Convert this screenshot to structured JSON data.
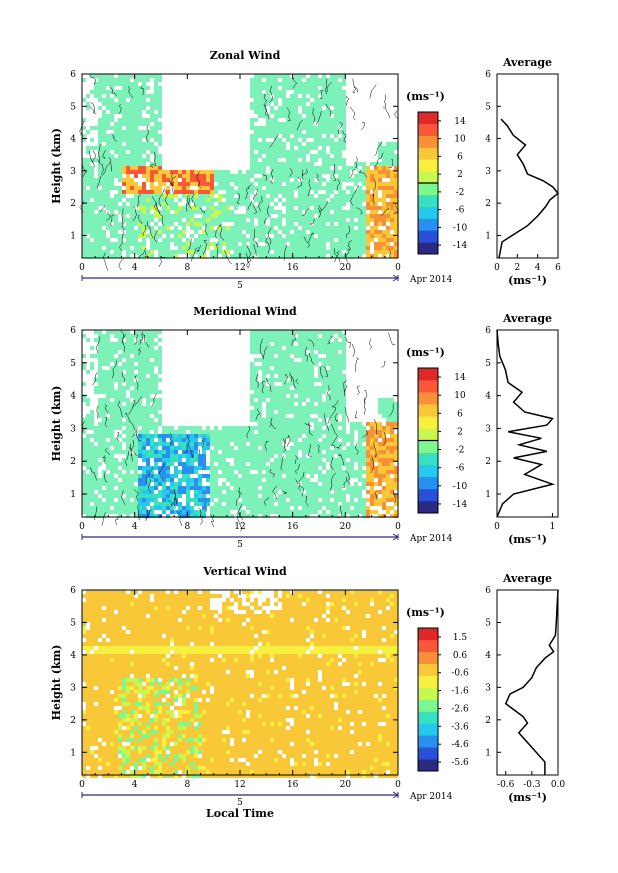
{
  "chart_data": [
    {
      "type": "heatmap",
      "title": "Zonal Wind",
      "xlabel": "",
      "ylabel": "Height (km)",
      "xlim": [
        0,
        24
      ],
      "ylim": [
        0.3,
        6
      ],
      "x_ticks": [
        "0",
        "4",
        "8",
        "12",
        "16",
        "20",
        "0"
      ],
      "y_ticks": [
        "1",
        "2",
        "3",
        "4",
        "5",
        "6"
      ],
      "date_marker": "5",
      "date_label": "Apr 2014",
      "colorbar": {
        "unit": "(ms⁻¹)",
        "range": [
          -15,
          15
        ],
        "ticks": [
          "14",
          "10",
          "6",
          "2",
          "-2",
          "-6",
          "-10",
          "-14"
        ]
      },
      "profile": {
        "title": "Average",
        "xlabel": "(ms⁻¹)",
        "xlim": [
          0,
          6
        ],
        "x_ticks": [
          "0",
          "2",
          "4",
          "6"
        ],
        "y_ticks": [
          "1",
          "2",
          "3",
          "4",
          "5",
          "6"
        ],
        "heights": [
          0.3,
          0.8,
          1.0,
          1.3,
          1.6,
          1.9,
          2.1,
          2.3,
          2.5,
          2.7,
          2.9,
          3.2,
          3.5,
          3.8,
          4.1,
          4.4,
          4.6
        ],
        "values": [
          0.2,
          0.5,
          1.5,
          3.0,
          4.0,
          4.8,
          5.2,
          6.0,
          5.5,
          4.5,
          3.0,
          2.6,
          2.0,
          2.8,
          1.6,
          1.0,
          0.4
        ]
      }
    },
    {
      "type": "heatmap",
      "title": "Meridional Wind",
      "xlabel": "",
      "ylabel": "Height (km)",
      "xlim": [
        0,
        24
      ],
      "ylim": [
        0.3,
        6
      ],
      "x_ticks": [
        "0",
        "4",
        "8",
        "12",
        "16",
        "20",
        "0"
      ],
      "y_ticks": [
        "1",
        "2",
        "3",
        "4",
        "5",
        "6"
      ],
      "date_marker": "5",
      "date_label": "Apr 2014",
      "colorbar": {
        "unit": "(ms⁻¹)",
        "range": [
          -15,
          15
        ],
        "ticks": [
          "14",
          "10",
          "6",
          "2",
          "-2",
          "-6",
          "-10",
          "-14"
        ]
      },
      "profile": {
        "title": "Average",
        "xlabel": "(ms⁻¹)",
        "xlim": [
          0,
          1.1
        ],
        "x_ticks": [
          "0",
          "1"
        ],
        "y_ticks": [
          "1",
          "2",
          "3",
          "4",
          "5",
          "6"
        ],
        "heights": [
          0.3,
          0.7,
          1.0,
          1.3,
          1.6,
          1.9,
          2.1,
          2.3,
          2.5,
          2.7,
          2.9,
          3.1,
          3.3,
          3.5,
          3.8,
          4.1,
          4.4,
          4.8,
          5.2,
          5.6,
          6.0
        ],
        "values": [
          0.0,
          0.1,
          0.3,
          1.0,
          0.5,
          0.8,
          0.3,
          0.9,
          0.4,
          0.8,
          0.2,
          0.9,
          1.0,
          0.5,
          0.3,
          0.45,
          0.2,
          0.15,
          0.05,
          0.02,
          0.0
        ]
      }
    },
    {
      "type": "heatmap",
      "title": "Vertical Wind",
      "xlabel": "Local Time",
      "ylabel": "Height (km)",
      "xlim": [
        0,
        24
      ],
      "ylim": [
        0.3,
        6
      ],
      "x_ticks": [
        "0",
        "4",
        "8",
        "12",
        "16",
        "20",
        "0"
      ],
      "y_ticks": [
        "1",
        "2",
        "3",
        "4",
        "5",
        "6"
      ],
      "date_marker": "5",
      "date_label": "Apr 2014",
      "colorbar": {
        "unit": "(ms⁻¹)",
        "range": [
          -6.0,
          1.9
        ],
        "ticks": [
          "1.5",
          "0.6",
          "-0.6",
          "-1.6",
          "-2.6",
          "-3.6",
          "-4.6",
          "-5.6"
        ]
      },
      "profile": {
        "title": "Average",
        "xlabel": "(ms⁻¹)",
        "xlim": [
          -0.7,
          0
        ],
        "x_ticks": [
          "-0.6",
          "-0.3",
          "0.0"
        ],
        "y_ticks": [
          "1",
          "2",
          "3",
          "4",
          "5",
          "6"
        ],
        "heights": [
          0.3,
          0.7,
          1.0,
          1.3,
          1.6,
          1.9,
          2.1,
          2.3,
          2.5,
          2.8,
          3.0,
          3.3,
          3.6,
          3.9,
          4.1,
          4.3,
          4.6,
          5.0,
          5.5,
          6.0
        ],
        "values": [
          -0.15,
          -0.15,
          -0.25,
          -0.35,
          -0.45,
          -0.35,
          -0.4,
          -0.5,
          -0.6,
          -0.55,
          -0.4,
          -0.3,
          -0.25,
          -0.15,
          -0.05,
          -0.1,
          -0.03,
          -0.02,
          -0.01,
          0.0
        ]
      }
    }
  ],
  "colors": {
    "scale": [
      "#2a2a80",
      "#2a50d8",
      "#2a90f0",
      "#26c8f0",
      "#36e0c0",
      "#7cf890",
      "#c8f850",
      "#f8f040",
      "#f8c838",
      "#f89038",
      "#f85838",
      "#e02828"
    ],
    "zonal_main": "#7cf2b8",
    "frame": "#000000",
    "date_bar": "#2a2a80"
  }
}
